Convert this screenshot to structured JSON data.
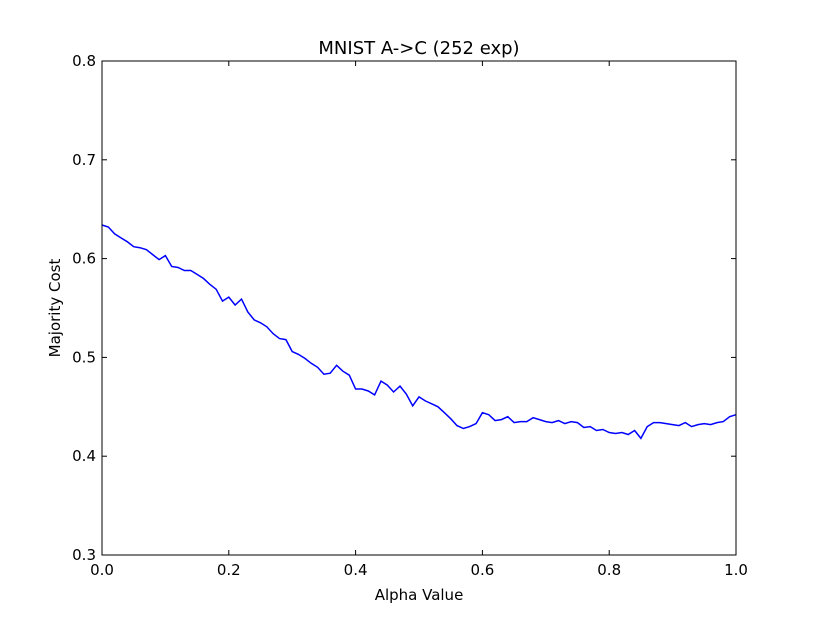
{
  "chart_data": {
    "type": "line",
    "title": "MNIST A->C (252 exp)",
    "xlabel": "Alpha Value",
    "ylabel": "Majority Cost",
    "xlim": [
      0.0,
      1.0
    ],
    "ylim": [
      0.3,
      0.8
    ],
    "x_ticks": [
      "0.0",
      "0.2",
      "0.4",
      "0.6",
      "0.8",
      "1.0"
    ],
    "y_ticks": [
      "0.3",
      "0.4",
      "0.5",
      "0.6",
      "0.7",
      "0.8"
    ],
    "grid": false,
    "series_color": "#0000ff",
    "series": [
      {
        "x": [
          0.0,
          0.01,
          0.02,
          0.03,
          0.04,
          0.05,
          0.06,
          0.07,
          0.08,
          0.09,
          0.1,
          0.11,
          0.12,
          0.13,
          0.14,
          0.15,
          0.16,
          0.17,
          0.18,
          0.19,
          0.2,
          0.21,
          0.22,
          0.23,
          0.24,
          0.25,
          0.26,
          0.27,
          0.28,
          0.29,
          0.3,
          0.31,
          0.32,
          0.33,
          0.34,
          0.35,
          0.36,
          0.37,
          0.38,
          0.39,
          0.4,
          0.41,
          0.42,
          0.43,
          0.44,
          0.45,
          0.46,
          0.47,
          0.48,
          0.49,
          0.5,
          0.51,
          0.52,
          0.53,
          0.54,
          0.55,
          0.56,
          0.57,
          0.58,
          0.59,
          0.6,
          0.61,
          0.62,
          0.63,
          0.64,
          0.65,
          0.66,
          0.67,
          0.68,
          0.69,
          0.7,
          0.71,
          0.72,
          0.73,
          0.74,
          0.75,
          0.76,
          0.77,
          0.78,
          0.79,
          0.8,
          0.81,
          0.82,
          0.83,
          0.84,
          0.85,
          0.86,
          0.87,
          0.88,
          0.89,
          0.9,
          0.91,
          0.92,
          0.93,
          0.94,
          0.95,
          0.96,
          0.97,
          0.98,
          0.99,
          1.0
        ],
        "values": [
          0.634,
          0.632,
          0.625,
          0.621,
          0.617,
          0.612,
          0.611,
          0.609,
          0.604,
          0.599,
          0.603,
          0.592,
          0.591,
          0.588,
          0.588,
          0.584,
          0.58,
          0.574,
          0.569,
          0.557,
          0.561,
          0.553,
          0.559,
          0.546,
          0.538,
          0.535,
          0.531,
          0.524,
          0.519,
          0.518,
          0.506,
          0.503,
          0.499,
          0.494,
          0.49,
          0.483,
          0.484,
          0.492,
          0.486,
          0.482,
          0.468,
          0.468,
          0.466,
          0.462,
          0.476,
          0.472,
          0.465,
          0.471,
          0.463,
          0.451,
          0.46,
          0.456,
          0.453,
          0.45,
          0.444,
          0.438,
          0.431,
          0.428,
          0.43,
          0.433,
          0.444,
          0.442,
          0.436,
          0.437,
          0.44,
          0.434,
          0.435,
          0.435,
          0.439,
          0.437,
          0.435,
          0.434,
          0.436,
          0.433,
          0.435,
          0.434,
          0.429,
          0.43,
          0.426,
          0.427,
          0.424,
          0.423,
          0.424,
          0.422,
          0.426,
          0.418,
          0.43,
          0.434,
          0.434,
          0.433,
          0.432,
          0.431,
          0.434,
          0.43,
          0.432,
          0.433,
          0.432,
          0.434,
          0.435,
          0.44,
          0.442
        ]
      }
    ]
  }
}
